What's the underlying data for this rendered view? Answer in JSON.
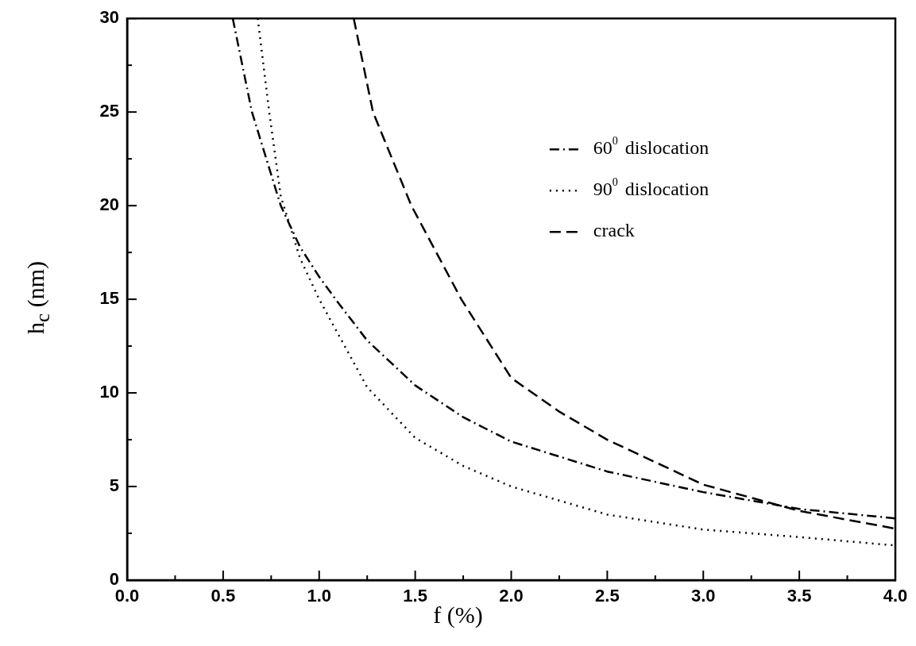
{
  "chart_data": {
    "type": "line",
    "xlabel": "f (%)",
    "ylabel": "h$_{c}$ (nm)",
    "legend": "top right",
    "marker": "none",
    "grid": false,
    "xlim": [
      0,
      4
    ],
    "ylim": [
      0,
      30
    ],
    "xticks": [
      {
        "value": 0,
        "label": "0.0"
      },
      {
        "value": 0.25,
        "label": null
      },
      {
        "value": 0.5,
        "label": "0.5"
      },
      {
        "value": 0.75,
        "label": null
      },
      {
        "value": 1,
        "label": "1.0"
      },
      {
        "value": 1.25,
        "label": null
      },
      {
        "value": 1.5,
        "label": "1.5"
      },
      {
        "value": 1.75,
        "label": null
      },
      {
        "value": 2,
        "label": "2.0"
      },
      {
        "value": 2.25,
        "label": null
      },
      {
        "value": 2.5,
        "label": "2.5"
      },
      {
        "value": 2.75,
        "label": null
      },
      {
        "value": 3,
        "label": "3.0"
      },
      {
        "value": 3.25,
        "label": null
      },
      {
        "value": 3.5,
        "label": "3.5"
      },
      {
        "value": 3.75,
        "label": null
      },
      {
        "value": 4,
        "label": "4.0"
      }
    ],
    "yticks": [
      0,
      {
        "value": 2.5,
        "label": null
      },
      5,
      {
        "value": 7.5,
        "label": null
      },
      10,
      {
        "value": 12.5,
        "label": null
      },
      15,
      {
        "value": 17.5,
        "label": null
      },
      20,
      {
        "value": 22.5,
        "label": null
      },
      25,
      {
        "value": 27.5,
        "label": null
      },
      30
    ],
    "series": [
      {
        "name": "60$^{0}$ dislocation",
        "color": "#000000",
        "line_style": "dashdot",
        "x": [
          0.55,
          0.65,
          0.8,
          0.9,
          1.0,
          1.1,
          1.25,
          1.5,
          1.75,
          2.0,
          2.5,
          3.0,
          3.5,
          4.0
        ],
        "values": [
          30,
          25,
          20,
          17.8,
          16.2,
          14.8,
          12.8,
          10.4,
          8.7,
          7.4,
          5.8,
          4.7,
          3.8,
          3.3
        ]
      },
      {
        "name": "90$^{0}$ dislocation",
        "color": "#000000",
        "line_style": "dotted",
        "x": [
          0.68,
          0.74,
          0.8,
          0.9,
          1.0,
          1.25,
          1.5,
          1.75,
          2.0,
          2.5,
          3.0,
          3.5,
          4.0
        ],
        "values": [
          30,
          25,
          20.5,
          17.2,
          15,
          10.3,
          7.6,
          6.1,
          5.0,
          3.5,
          2.7,
          2.3,
          1.85
        ]
      },
      {
        "name": "crack",
        "color": "#000000",
        "line_style": "dashed",
        "x": [
          1.18,
          1.28,
          1.48,
          1.74,
          2.0,
          2.25,
          2.5,
          3.0,
          3.5,
          4.0
        ],
        "values": [
          30,
          25,
          20,
          15,
          10.8,
          9,
          7.5,
          5.1,
          3.7,
          2.75
        ]
      }
    ]
  }
}
